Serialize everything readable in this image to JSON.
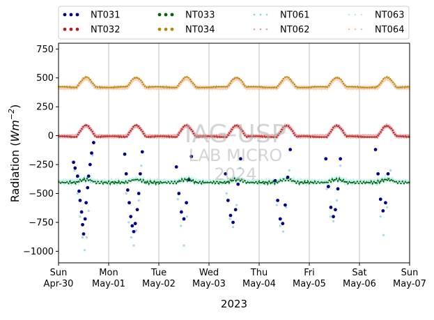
{
  "chart_data": {
    "type": "scatter",
    "ylabel_main": "Radiation (",
    "ylabel_unit": "Wm",
    "ylabel_exp": "−2",
    "ylabel_close": ")",
    "xlabel": "2023",
    "ylim": [
      -1100,
      800
    ],
    "xlim": [
      0,
      7
    ],
    "grid": "vertical",
    "legend_position": "top",
    "yticks": [
      {
        "value": 750,
        "label": "750"
      },
      {
        "value": 500,
        "label": "500"
      },
      {
        "value": 250,
        "label": "250"
      },
      {
        "value": 0,
        "label": "0"
      },
      {
        "value": -250,
        "label": "−250"
      },
      {
        "value": -500,
        "label": "−500"
      },
      {
        "value": -750,
        "label": "−750"
      },
      {
        "value": -1000,
        "label": "−1000"
      }
    ],
    "xticks": [
      {
        "value": 0,
        "day": "Sun",
        "date": "Apr-30"
      },
      {
        "value": 1,
        "day": "Mon",
        "date": "May-01"
      },
      {
        "value": 2,
        "day": "Tue",
        "date": "May-02"
      },
      {
        "value": 3,
        "day": "Wed",
        "date": "May-03"
      },
      {
        "value": 4,
        "day": "Thu",
        "date": "May-04"
      },
      {
        "value": 5,
        "day": "Fri",
        "date": "May-05"
      },
      {
        "value": 6,
        "day": "Sat",
        "date": "May-06"
      },
      {
        "value": 7,
        "day": "Sun",
        "date": "May-07"
      }
    ],
    "watermark": {
      "line1": "IAG-USP",
      "line2": "LAB MICRO",
      "line3": "2024"
    },
    "series": [
      {
        "name": "NT031",
        "color": "#00008b",
        "style": "dots",
        "points": [
          [
            0.3,
            -230
          ],
          [
            0.33,
            -280
          ],
          [
            0.38,
            -350
          ],
          [
            0.41,
            -480
          ],
          [
            0.43,
            -560
          ],
          [
            0.46,
            -660
          ],
          [
            0.48,
            -770
          ],
          [
            0.5,
            -850
          ],
          [
            0.53,
            -720
          ],
          [
            0.55,
            -580
          ],
          [
            0.58,
            -450
          ],
          [
            0.6,
            -350
          ],
          [
            0.63,
            -250
          ],
          [
            0.66,
            -150
          ],
          [
            0.7,
            -60
          ],
          [
            1.32,
            -160
          ],
          [
            1.35,
            -330
          ],
          [
            1.38,
            -470
          ],
          [
            1.41,
            -580
          ],
          [
            1.44,
            -700
          ],
          [
            1.47,
            -780
          ],
          [
            1.5,
            -830
          ],
          [
            1.53,
            -760
          ],
          [
            1.57,
            -640
          ],
          [
            1.6,
            -500
          ],
          [
            1.63,
            -330
          ],
          [
            1.67,
            -140
          ],
          [
            2.35,
            -270
          ],
          [
            2.4,
            -500
          ],
          [
            2.45,
            -660
          ],
          [
            2.5,
            -720
          ],
          [
            2.55,
            -580
          ],
          [
            2.6,
            -380
          ],
          [
            2.65,
            -180
          ],
          [
            3.33,
            -330
          ],
          [
            3.38,
            -560
          ],
          [
            3.43,
            -690
          ],
          [
            3.48,
            -750
          ],
          [
            3.53,
            -640
          ],
          [
            3.58,
            -420
          ],
          [
            3.63,
            -200
          ],
          [
            4.32,
            -390
          ],
          [
            4.37,
            -560
          ],
          [
            4.42,
            -720
          ],
          [
            4.47,
            -760
          ],
          [
            4.52,
            -600
          ],
          [
            4.57,
            -360
          ],
          [
            4.62,
            -120
          ],
          [
            5.33,
            -200
          ],
          [
            5.38,
            -440
          ],
          [
            5.43,
            -620
          ],
          [
            5.48,
            -700
          ],
          [
            5.52,
            -640
          ],
          [
            5.57,
            -460
          ],
          [
            5.62,
            -200
          ],
          [
            6.32,
            -120
          ],
          [
            6.37,
            -330
          ],
          [
            6.42,
            -550
          ],
          [
            6.47,
            -650
          ],
          [
            6.52,
            -580
          ],
          [
            6.57,
            -330
          ]
        ]
      },
      {
        "name": "NT032",
        "color": "#b22222",
        "style": "dots",
        "line": "bump",
        "base": -8,
        "amp": 95
      },
      {
        "name": "NT033",
        "color": "#006400",
        "style": "dots",
        "line": "band",
        "base": -405,
        "amp": 45
      },
      {
        "name": "NT034",
        "color": "#b8860b",
        "style": "dots",
        "line": "bump",
        "base": 420,
        "amp": 85
      },
      {
        "name": "NT061",
        "color": "#87ceeb",
        "style": "faint",
        "points": [
          [
            0.32,
            -300
          ],
          [
            0.38,
            -500
          ],
          [
            0.43,
            -700
          ],
          [
            0.48,
            -880
          ],
          [
            0.52,
            -990
          ],
          [
            0.56,
            -880
          ],
          [
            0.6,
            -650
          ],
          [
            0.64,
            -400
          ],
          [
            0.68,
            -170
          ],
          [
            1.35,
            -500
          ],
          [
            1.4,
            -750
          ],
          [
            1.45,
            -880
          ],
          [
            1.5,
            -950
          ],
          [
            1.55,
            -820
          ],
          [
            1.6,
            -560
          ],
          [
            1.65,
            -260
          ],
          [
            2.38,
            -550
          ],
          [
            2.44,
            -780
          ],
          [
            2.5,
            -950
          ],
          [
            2.56,
            -700
          ],
          [
            2.62,
            -380
          ],
          [
            3.35,
            -500
          ],
          [
            3.42,
            -720
          ],
          [
            3.48,
            -790
          ],
          [
            3.55,
            -600
          ],
          [
            3.62,
            -280
          ],
          [
            4.35,
            -600
          ],
          [
            4.42,
            -780
          ],
          [
            4.48,
            -830
          ],
          [
            4.54,
            -620
          ],
          [
            4.6,
            -300
          ],
          [
            5.35,
            -460
          ],
          [
            5.42,
            -700
          ],
          [
            5.48,
            -740
          ],
          [
            5.55,
            -560
          ],
          [
            5.62,
            -260
          ],
          [
            6.35,
            -420
          ],
          [
            6.42,
            -700
          ],
          [
            6.48,
            -860
          ],
          [
            6.55,
            -620
          ],
          [
            6.62,
            -300
          ]
        ]
      },
      {
        "name": "NT062",
        "color": "#e8a0a0",
        "style": "faint",
        "line": "bump",
        "base": -5,
        "amp": 90
      },
      {
        "name": "NT063",
        "color": "#b7ecf0",
        "style": "faint",
        "line": "band",
        "base": -400,
        "amp": 40
      },
      {
        "name": "NT064",
        "color": "#f5c5a0",
        "style": "faint",
        "line": "bump",
        "base": 415,
        "amp": 80
      }
    ]
  }
}
